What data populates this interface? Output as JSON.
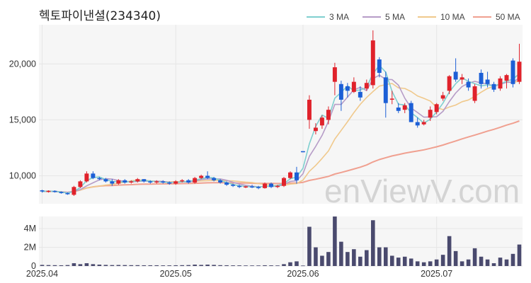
{
  "chart_data": {
    "type": "candlestick",
    "title": "헥토파이낸셜(234340)",
    "watermark": "enViewV.com",
    "colors": {
      "up": "#e0222b",
      "down": "#1c5fd6",
      "volume": "#4a4a6e",
      "ma3": "#7fcfcf",
      "ma5": "#b69cc7",
      "ma10": "#f0c98c",
      "ma50": "#f0a090",
      "grid": "#e6e6e6",
      "panel": "#f6f6f6"
    },
    "legend": [
      {
        "name": "3 MA",
        "color": "#7fcfcf"
      },
      {
        "name": "5 MA",
        "color": "#b69cc7"
      },
      {
        "name": "10 MA",
        "color": "#f0c98c"
      },
      {
        "name": "50 MA",
        "color": "#f0a090"
      }
    ],
    "price_axis": {
      "ylim": [
        7500,
        23500
      ],
      "ticks": [
        10000,
        15000,
        20000
      ],
      "tick_labels": [
        "10,000",
        "15,000",
        "20,000"
      ]
    },
    "volume_axis": {
      "ylim": [
        0,
        5300000
      ],
      "ticks": [
        0,
        2000000,
        4000000
      ],
      "tick_labels": [
        "0",
        "2M",
        "4M"
      ]
    },
    "x_labels": [
      {
        "index": 0,
        "label": "2025.04"
      },
      {
        "index": 21,
        "label": "2025.05"
      },
      {
        "index": 41,
        "label": "2025.06"
      },
      {
        "index": 62,
        "label": "2025.07"
      }
    ],
    "candles": [
      [
        8700,
        8750,
        8500,
        8600,
        120000
      ],
      [
        8600,
        8700,
        8500,
        8650,
        100000
      ],
      [
        8650,
        8700,
        8500,
        8550,
        90000
      ],
      [
        8550,
        8600,
        8400,
        8450,
        80000
      ],
      [
        8450,
        8500,
        8300,
        8350,
        100000
      ],
      [
        8300,
        9100,
        8200,
        9000,
        300000
      ],
      [
        9000,
        9600,
        8900,
        9500,
        200000
      ],
      [
        9500,
        10400,
        9400,
        10200,
        300000
      ],
      [
        10200,
        10400,
        9700,
        9800,
        200000
      ],
      [
        9800,
        9900,
        9600,
        9700,
        150000
      ],
      [
        9700,
        9800,
        9400,
        9500,
        120000
      ],
      [
        9500,
        9700,
        9100,
        9300,
        100000
      ],
      [
        9300,
        9700,
        9200,
        9600,
        110000
      ],
      [
        9600,
        9700,
        9300,
        9400,
        100000
      ],
      [
        9400,
        9600,
        9300,
        9500,
        90000
      ],
      [
        9500,
        9800,
        9400,
        9700,
        90000
      ],
      [
        9700,
        9700,
        9400,
        9500,
        80000
      ],
      [
        9500,
        9600,
        9300,
        9400,
        80000
      ],
      [
        9400,
        9600,
        9300,
        9500,
        80000
      ],
      [
        9500,
        9600,
        9300,
        9400,
        70000
      ],
      [
        9400,
        9500,
        9200,
        9300,
        70000
      ],
      [
        9300,
        9600,
        9200,
        9500,
        80000
      ],
      [
        9500,
        9700,
        9400,
        9600,
        90000
      ],
      [
        9600,
        9700,
        9300,
        9400,
        100000
      ],
      [
        9400,
        9900,
        9300,
        9800,
        150000
      ],
      [
        9800,
        10100,
        9700,
        10000,
        120000
      ],
      [
        10000,
        10400,
        9700,
        9800,
        150000
      ],
      [
        9800,
        9900,
        9500,
        9600,
        120000
      ],
      [
        9600,
        9700,
        9300,
        9400,
        90000
      ],
      [
        9400,
        9500,
        9100,
        9200,
        80000
      ],
      [
        9200,
        9300,
        9000,
        9100,
        70000
      ],
      [
        9100,
        9200,
        8900,
        9000,
        70000
      ],
      [
        9000,
        9100,
        8900,
        9050,
        60000
      ],
      [
        9050,
        9200,
        8900,
        9000,
        60000
      ],
      [
        9000,
        9100,
        8800,
        8900,
        60000
      ],
      [
        8900,
        9400,
        8850,
        9300,
        80000
      ],
      [
        9300,
        9400,
        8900,
        9000,
        70000
      ],
      [
        9000,
        9200,
        8900,
        9100,
        60000
      ],
      [
        9100,
        9900,
        9000,
        9800,
        200000
      ],
      [
        9800,
        10400,
        9700,
        10300,
        400000
      ],
      [
        10300,
        10800,
        9300,
        9600,
        500000
      ],
      [
        12200,
        12200,
        12100,
        12150,
        50000
      ],
      [
        15000,
        17200,
        14200,
        16800,
        4200000
      ],
      [
        14000,
        14700,
        13700,
        14300,
        2000000
      ],
      [
        14500,
        15400,
        14200,
        15200,
        1100000
      ],
      [
        15000,
        16200,
        14600,
        15900,
        1500000
      ],
      [
        18400,
        20100,
        17200,
        19700,
        5300000
      ],
      [
        18200,
        18500,
        15800,
        16800,
        2600000
      ],
      [
        18000,
        18300,
        17000,
        17600,
        1500000
      ],
      [
        17500,
        18800,
        17400,
        18400,
        1800000
      ],
      [
        17500,
        18000,
        16700,
        17000,
        1000000
      ],
      [
        17800,
        18600,
        17600,
        18300,
        1700000
      ],
      [
        18100,
        23000,
        17800,
        22100,
        4900000
      ],
      [
        20400,
        20600,
        18800,
        19200,
        2000000
      ],
      [
        18800,
        19300,
        15200,
        16500,
        2000000
      ],
      [
        16800,
        17600,
        16400,
        16900,
        1100000
      ],
      [
        16100,
        16500,
        15600,
        15800,
        900000
      ],
      [
        15900,
        16500,
        15600,
        16300,
        1000000
      ],
      [
        16500,
        16700,
        14800,
        14800,
        800000
      ],
      [
        14800,
        15200,
        14300,
        14500,
        500000
      ],
      [
        14600,
        15000,
        14500,
        14800,
        400000
      ],
      [
        15200,
        16200,
        14900,
        15900,
        500000
      ],
      [
        15700,
        16500,
        15500,
        16400,
        700000
      ],
      [
        16900,
        17500,
        16700,
        17200,
        1200000
      ],
      [
        17600,
        19000,
        17300,
        18900,
        3200000
      ],
      [
        19300,
        20500,
        18400,
        18600,
        1600000
      ],
      [
        18600,
        19100,
        18200,
        18800,
        500000
      ],
      [
        18400,
        18700,
        17600,
        17900,
        700000
      ],
      [
        16700,
        18200,
        16500,
        18000,
        1900000
      ],
      [
        19200,
        19500,
        17800,
        18200,
        1000000
      ],
      [
        18600,
        19300,
        17900,
        18200,
        700000
      ],
      [
        18200,
        18400,
        17500,
        17700,
        300000
      ],
      [
        17800,
        18900,
        17600,
        18700,
        900000
      ],
      [
        18500,
        19100,
        17800,
        19000,
        700000
      ],
      [
        20300,
        20500,
        17900,
        18200,
        1300000
      ],
      [
        18400,
        21800,
        18200,
        20200,
        2300000
      ]
    ]
  }
}
